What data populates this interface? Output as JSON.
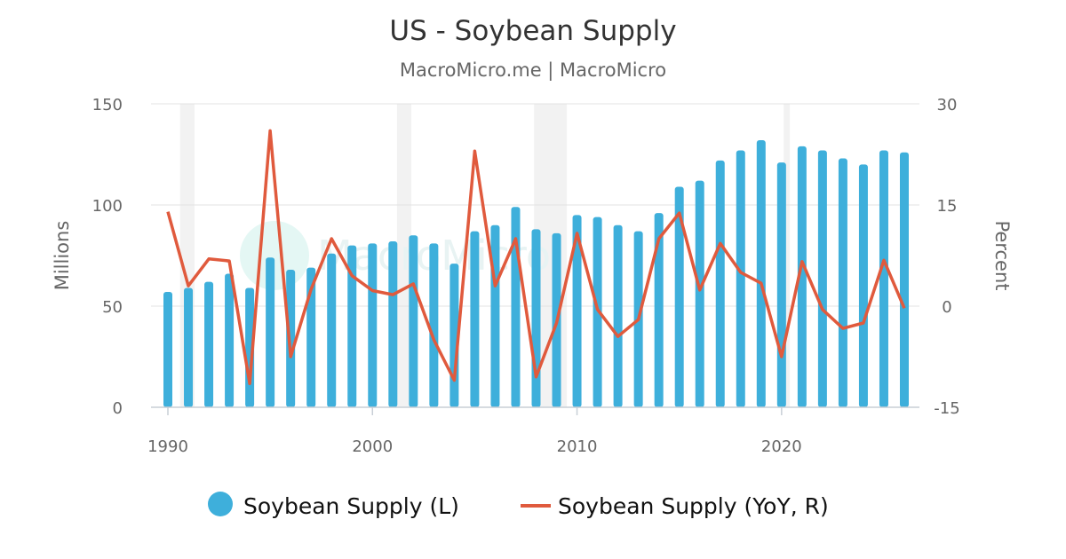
{
  "chart_data": {
    "type": "bar+line",
    "title": "US - Soybean Supply",
    "subtitle": "MacroMicro.me | MacroMicro",
    "watermark": "MacroMicro",
    "ylabel_left": "Millions",
    "ylabel_right": "Percent",
    "ylim_left": [
      0,
      150
    ],
    "ylim_right": [
      -15,
      30
    ],
    "yticks_left": [
      "0",
      "50",
      "100",
      "150"
    ],
    "yticks_right": [
      "-15",
      "0",
      "15",
      "30"
    ],
    "xlim": [
      1990,
      2026
    ],
    "xticks": [
      "1990",
      "2000",
      "2010",
      "2020"
    ],
    "grid": true,
    "legend_position": "bottom",
    "recession_shading": [
      [
        1990.6,
        1991.3
      ],
      [
        2001.2,
        2001.9
      ],
      [
        2007.9,
        2009.5
      ],
      [
        2020.1,
        2020.4
      ]
    ],
    "x": [
      1990,
      1991,
      1992,
      1993,
      1994,
      1995,
      1996,
      1997,
      1998,
      1999,
      2000,
      2001,
      2002,
      2003,
      2004,
      2005,
      2006,
      2007,
      2008,
      2009,
      2010,
      2011,
      2012,
      2013,
      2014,
      2015,
      2016,
      2017,
      2018,
      2019,
      2020,
      2021,
      2022,
      2023,
      2024,
      2025,
      2026
    ],
    "series": [
      {
        "name": "Soybean Supply (L)",
        "axis": "left",
        "kind": "bar",
        "color": "#3eafdb",
        "values": [
          57,
          59,
          62,
          66,
          59,
          74,
          68,
          69,
          76,
          80,
          81,
          82,
          85,
          81,
          71,
          87,
          90,
          99,
          88,
          86,
          95,
          94,
          90,
          87,
          96,
          109,
          112,
          122,
          127,
          132,
          121,
          129,
          127,
          123,
          120,
          127,
          126
        ]
      },
      {
        "name": "Soybean Supply (YoY, R)",
        "axis": "right",
        "kind": "line",
        "color": "#e05a3d",
        "values": [
          14,
          3,
          7,
          6.7,
          -11.5,
          26,
          -7.5,
          2.5,
          10,
          4.5,
          2.3,
          1.7,
          3.3,
          -5,
          -11,
          23,
          3,
          10,
          -10.5,
          -2.5,
          10.8,
          -0.5,
          -4.5,
          -2,
          10,
          13.8,
          2.4,
          9.3,
          5,
          3.4,
          -7.5,
          6.6,
          -0.5,
          -3.3,
          -2.5,
          6.8,
          -0.3
        ]
      }
    ]
  }
}
